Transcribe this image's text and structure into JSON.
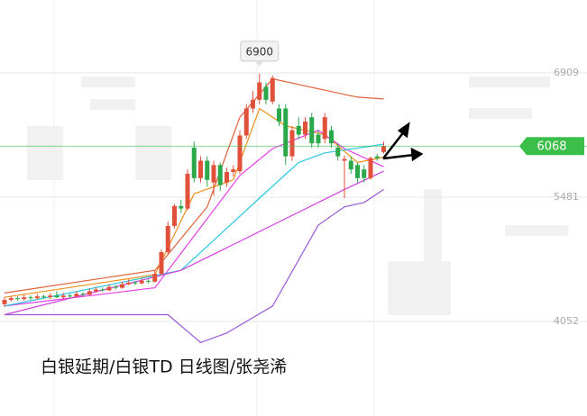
{
  "chart_data": {
    "type": "candlestick",
    "title": "白银延期/白银TD  日线图/张尧浠",
    "up_color": "#e0503a",
    "down_color": "#2aa84a",
    "open": [
      4250,
      4300,
      4320,
      4310,
      4330,
      4320,
      4340,
      4330,
      4350,
      4330,
      4350,
      4340,
      4370,
      4360,
      4400,
      4420,
      4410,
      4450,
      4440,
      4480,
      4500,
      4490,
      4520,
      4510,
      4600,
      4850,
      5150,
      5380,
      5350,
      6050,
      5700,
      5900,
      5650,
      5850,
      5650,
      5770,
      5780,
      6190,
      6500,
      6600,
      6750,
      6580,
      6500,
      6500,
      5950,
      6300,
      6200,
      6400,
      6200,
      6150,
      6250,
      6050,
      5900,
      5900,
      5850,
      5800,
      5700,
      5950,
      6000
    ],
    "high": [
      4330,
      4350,
      4340,
      4360,
      4350,
      4370,
      4360,
      4380,
      4400,
      4380,
      4370,
      4400,
      4390,
      4430,
      4450,
      4440,
      4480,
      4470,
      4510,
      4540,
      4520,
      4550,
      4540,
      4640,
      4880,
      5200,
      5400,
      5450,
      5800,
      6120,
      5950,
      5950,
      5900,
      5880,
      5820,
      5850,
      6250,
      6550,
      6700,
      6900,
      6800,
      6880,
      6550,
      6550,
      6300,
      6400,
      6400,
      6450,
      6250,
      6450,
      6300,
      6100,
      5960,
      5950,
      5880,
      5850,
      5950,
      5980,
      6120
    ],
    "low": [
      4220,
      4280,
      4290,
      4290,
      4300,
      4300,
      4310,
      4310,
      4320,
      4310,
      4320,
      4330,
      4340,
      4350,
      4380,
      4390,
      4400,
      4420,
      4430,
      4470,
      4470,
      4480,
      4490,
      4500,
      4580,
      4830,
      5120,
      5300,
      5330,
      5650,
      5650,
      5600,
      5500,
      5550,
      5600,
      5720,
      5750,
      6150,
      6450,
      6550,
      6550,
      6550,
      6300,
      5850,
      5900,
      6150,
      6150,
      6050,
      6050,
      6100,
      6050,
      5900,
      5470,
      5750,
      5650,
      5650,
      5680,
      5900,
      5980
    ],
    "close": [
      4300,
      4320,
      4310,
      4330,
      4320,
      4340,
      4330,
      4350,
      4330,
      4350,
      4340,
      4370,
      4360,
      4400,
      4420,
      4410,
      4450,
      4440,
      4480,
      4500,
      4490,
      4520,
      4510,
      4600,
      4850,
      5150,
      5380,
      5350,
      5750,
      5700,
      5900,
      5680,
      5850,
      5620,
      5770,
      5800,
      6190,
      6500,
      6600,
      6800,
      6600,
      6850,
      6350,
      5950,
      6250,
      6200,
      6350,
      6100,
      6100,
      6400,
      6100,
      5950,
      5920,
      5800,
      5700,
      5700,
      5930,
      5930,
      6068
    ],
    "series": [
      {
        "color": "#e0603a",
        "x": [
          0,
          23,
          31,
          36,
          41,
          49,
          54,
          58
        ],
        "values": [
          4380,
          4640,
          5370,
          6400,
          6840,
          6710,
          6630,
          6610
        ]
      },
      {
        "color": "#f0901a",
        "x": [
          0,
          23,
          29,
          35,
          39,
          43,
          49,
          54,
          58
        ],
        "values": [
          4330,
          4590,
          5520,
          5680,
          6500,
          6300,
          6200,
          5880,
          5940
        ]
      },
      {
        "color": "#e83ee8",
        "x": [
          0,
          23,
          36,
          41,
          48,
          52,
          58
        ],
        "values": [
          4230,
          4440,
          5730,
          6040,
          6250,
          6040,
          5830
        ]
      },
      {
        "color": "#2ac8e0",
        "x": [
          0,
          27,
          39,
          45,
          49,
          58
        ],
        "values": [
          4230,
          4640,
          5470,
          5880,
          5990,
          6090
        ]
      },
      {
        "color": "#d040e0",
        "x": [
          0,
          27,
          41,
          52,
          58
        ],
        "values": [
          4130,
          4640,
          5160,
          5570,
          5780
        ]
      },
      {
        "color": "#9a5ad8",
        "x": [
          0,
          20,
          25,
          30,
          34,
          41,
          48,
          52,
          55,
          58
        ],
        "values": [
          4130,
          4130,
          4130,
          3810,
          3920,
          4230,
          5160,
          5370,
          5420,
          5570
        ]
      }
    ],
    "ylim": [
      2966,
      7747
    ],
    "yticks": [
      6909,
      5481,
      4052
    ],
    "grid": true,
    "max_label": 6900,
    "last_price": 6068,
    "last_price_color": "#3cbf4a"
  }
}
